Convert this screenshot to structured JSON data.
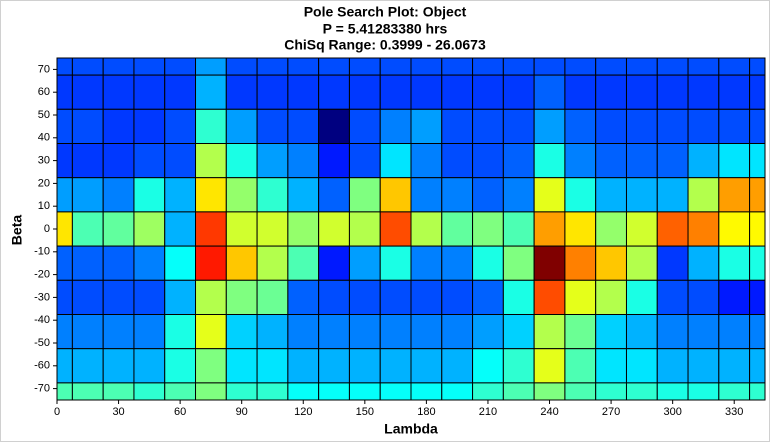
{
  "chart_data": {
    "type": "heatmap",
    "title": "Pole Search Plot: Object",
    "subtitles": [
      "P = 5.41283380 hrs",
      "ChiSq Range: 0.3999 - 26.0673"
    ],
    "x_label": "Lambda",
    "y_label": "Beta",
    "colormap": "jet_r",
    "clim": [
      0.3999,
      26.0673
    ],
    "x": [
      0,
      15,
      30,
      45,
      60,
      75,
      90,
      105,
      120,
      135,
      150,
      165,
      180,
      195,
      210,
      225,
      240,
      255,
      270,
      285,
      300,
      315,
      330,
      345
    ],
    "y": [
      75,
      60,
      45,
      30,
      15,
      0,
      -15,
      -30,
      -45,
      -60,
      -75
    ],
    "values": [
      [
        20.94,
        20.94,
        20.94,
        20.94,
        20.94,
        18.88,
        20.94,
        20.94,
        20.94,
        20.94,
        20.94,
        20.94,
        20.94,
        20.94,
        20.94,
        20.94,
        20.94,
        20.94,
        20.94,
        20.94,
        20.94,
        20.94,
        20.94,
        20.94
      ],
      [
        21.45,
        21.45,
        21.45,
        21.45,
        21.45,
        18.37,
        21.45,
        21.45,
        21.45,
        21.45,
        21.45,
        21.45,
        21.45,
        21.45,
        21.45,
        21.45,
        20.42,
        21.45,
        21.45,
        21.45,
        21.45,
        21.45,
        21.45,
        21.45
      ],
      [
        20.94,
        20.94,
        21.45,
        21.45,
        20.94,
        15.29,
        18.88,
        20.94,
        20.94,
        26.07,
        20.94,
        19.65,
        18.88,
        20.94,
        20.94,
        20.94,
        18.88,
        20.42,
        20.94,
        20.94,
        20.94,
        20.94,
        20.94,
        20.94
      ],
      [
        21.45,
        21.45,
        21.45,
        20.94,
        20.94,
        11.95,
        15.8,
        18.88,
        19.65,
        22.22,
        20.94,
        17.09,
        19.65,
        20.94,
        20.94,
        20.42,
        15.8,
        19.65,
        20.42,
        20.42,
        20.42,
        18.37,
        17.09,
        17.09
      ],
      [
        18.88,
        18.88,
        19.65,
        15.8,
        18.37,
        9.39,
        12.72,
        15.29,
        18.37,
        20.42,
        13.24,
        8.61,
        19.65,
        19.65,
        20.42,
        19.65,
        10.67,
        15.8,
        18.37,
        18.37,
        18.37,
        11.95,
        7.59,
        7.59
      ],
      [
        9.39,
        14.52,
        14.01,
        12.46,
        18.37,
        5.02,
        11.18,
        11.18,
        12.72,
        11.18,
        11.95,
        5.53,
        11.95,
        14.01,
        13.24,
        14.52,
        7.59,
        9.39,
        12.72,
        11.18,
        6.05,
        6.82,
        9.9,
        9.9
      ],
      [
        20.42,
        20.42,
        20.42,
        19.65,
        16.32,
        4.25,
        8.61,
        11.95,
        14.52,
        22.22,
        18.88,
        15.8,
        19.65,
        19.65,
        15.8,
        13.24,
        0.4,
        6.82,
        8.61,
        11.95,
        21.45,
        18.37,
        15.8,
        15.8
      ],
      [
        20.94,
        20.94,
        20.94,
        20.94,
        18.37,
        11.95,
        13.24,
        13.75,
        20.42,
        20.94,
        20.94,
        20.94,
        20.94,
        20.94,
        20.42,
        15.8,
        5.53,
        10.67,
        11.95,
        15.8,
        20.94,
        20.94,
        22.22,
        22.22
      ],
      [
        19.65,
        19.65,
        19.65,
        19.65,
        15.8,
        10.67,
        17.6,
        18.37,
        19.65,
        19.65,
        19.65,
        19.65,
        19.65,
        19.65,
        18.88,
        17.6,
        11.95,
        13.75,
        17.6,
        18.37,
        19.65,
        19.65,
        19.65,
        19.65
      ],
      [
        18.37,
        18.37,
        18.37,
        18.37,
        15.8,
        13.24,
        17.09,
        17.09,
        18.37,
        18.37,
        18.37,
        18.37,
        18.37,
        18.37,
        16.32,
        15.29,
        10.67,
        14.52,
        17.09,
        17.09,
        18.37,
        18.37,
        18.37,
        18.37
      ],
      [
        14.52,
        14.52,
        14.52,
        15.29,
        14.52,
        13.24,
        15.29,
        15.29,
        16.32,
        16.32,
        16.32,
        16.32,
        16.32,
        16.32,
        15.29,
        14.52,
        13.24,
        14.52,
        15.29,
        15.29,
        15.8,
        15.8,
        15.29,
        15.29
      ]
    ],
    "xlim": [
      0,
      345
    ],
    "ylim": [
      -75,
      75
    ],
    "xticks": [
      0,
      30,
      60,
      90,
      120,
      150,
      180,
      210,
      240,
      270,
      300,
      330
    ],
    "yticks": [
      -70,
      -60,
      -50,
      -40,
      -30,
      -20,
      -10,
      0,
      10,
      20,
      30,
      40,
      50,
      60,
      70
    ],
    "cell_border": "#000000"
  }
}
